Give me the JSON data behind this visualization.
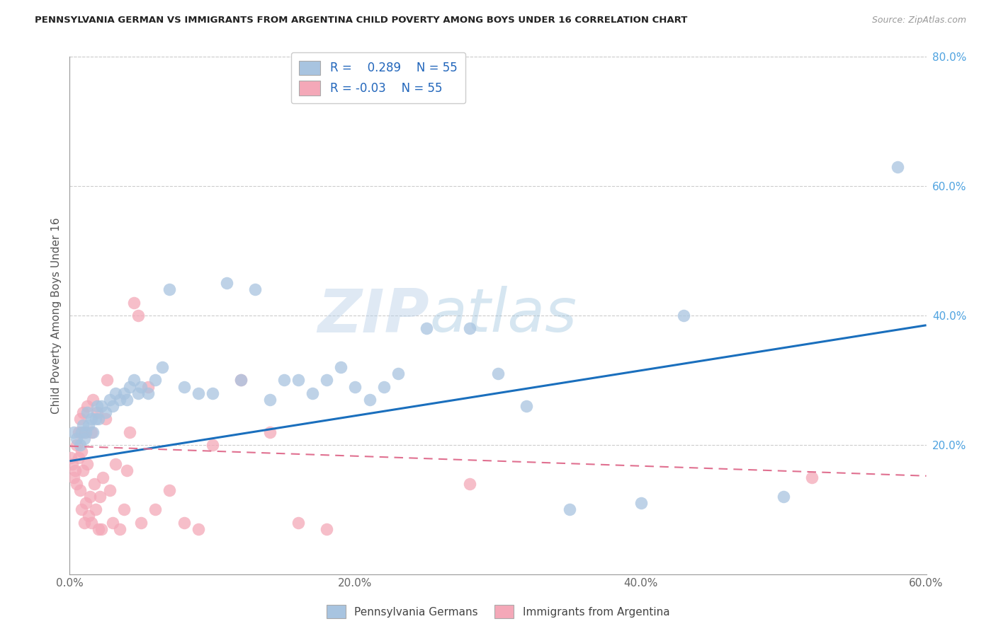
{
  "title": "PENNSYLVANIA GERMAN VS IMMIGRANTS FROM ARGENTINA CHILD POVERTY AMONG BOYS UNDER 16 CORRELATION CHART",
  "source": "Source: ZipAtlas.com",
  "ylabel": "Child Poverty Among Boys Under 16",
  "xlim": [
    0.0,
    0.6
  ],
  "ylim": [
    0.0,
    0.8
  ],
  "xtick_labels": [
    "0.0%",
    "20.0%",
    "40.0%",
    "60.0%"
  ],
  "xtick_vals": [
    0.0,
    0.2,
    0.4,
    0.6
  ],
  "ytick_labels": [
    "20.0%",
    "40.0%",
    "60.0%",
    "80.0%"
  ],
  "ytick_vals": [
    0.2,
    0.4,
    0.6,
    0.8
  ],
  "R_blue": 0.289,
  "R_pink": -0.03,
  "N_blue": 55,
  "N_pink": 55,
  "blue_color": "#a8c4e0",
  "pink_color": "#f4a8b8",
  "line_blue": "#1a6fbd",
  "line_pink": "#e07090",
  "watermark_zip": "ZIP",
  "watermark_atlas": "atlas",
  "legend_label_blue": "Pennsylvania Germans",
  "legend_label_pink": "Immigrants from Argentina",
  "blue_x": [
    0.003,
    0.005,
    0.007,
    0.008,
    0.009,
    0.01,
    0.011,
    0.012,
    0.013,
    0.015,
    0.016,
    0.018,
    0.019,
    0.02,
    0.022,
    0.025,
    0.028,
    0.03,
    0.032,
    0.035,
    0.038,
    0.04,
    0.042,
    0.045,
    0.048,
    0.05,
    0.055,
    0.06,
    0.065,
    0.07,
    0.08,
    0.09,
    0.1,
    0.11,
    0.12,
    0.13,
    0.14,
    0.15,
    0.16,
    0.17,
    0.18,
    0.19,
    0.2,
    0.21,
    0.22,
    0.23,
    0.25,
    0.28,
    0.3,
    0.32,
    0.35,
    0.4,
    0.43,
    0.5,
    0.58
  ],
  "blue_y": [
    0.22,
    0.21,
    0.2,
    0.22,
    0.23,
    0.21,
    0.22,
    0.25,
    0.23,
    0.24,
    0.22,
    0.24,
    0.26,
    0.24,
    0.26,
    0.25,
    0.27,
    0.26,
    0.28,
    0.27,
    0.28,
    0.27,
    0.29,
    0.3,
    0.28,
    0.29,
    0.28,
    0.3,
    0.32,
    0.44,
    0.29,
    0.28,
    0.28,
    0.45,
    0.3,
    0.44,
    0.27,
    0.3,
    0.3,
    0.28,
    0.3,
    0.32,
    0.29,
    0.27,
    0.29,
    0.31,
    0.38,
    0.38,
    0.31,
    0.26,
    0.1,
    0.11,
    0.4,
    0.12,
    0.63
  ],
  "pink_x": [
    0.001,
    0.002,
    0.003,
    0.004,
    0.005,
    0.005,
    0.006,
    0.006,
    0.007,
    0.007,
    0.008,
    0.008,
    0.009,
    0.009,
    0.01,
    0.01,
    0.011,
    0.012,
    0.012,
    0.013,
    0.014,
    0.015,
    0.015,
    0.016,
    0.017,
    0.018,
    0.019,
    0.02,
    0.021,
    0.022,
    0.023,
    0.025,
    0.026,
    0.028,
    0.03,
    0.032,
    0.035,
    0.038,
    0.04,
    0.042,
    0.045,
    0.048,
    0.05,
    0.055,
    0.06,
    0.07,
    0.08,
    0.09,
    0.1,
    0.12,
    0.14,
    0.16,
    0.18,
    0.28,
    0.52
  ],
  "pink_y": [
    0.18,
    0.17,
    0.15,
    0.16,
    0.2,
    0.14,
    0.22,
    0.18,
    0.13,
    0.24,
    0.19,
    0.1,
    0.16,
    0.25,
    0.08,
    0.22,
    0.11,
    0.17,
    0.26,
    0.09,
    0.12,
    0.08,
    0.22,
    0.27,
    0.14,
    0.1,
    0.25,
    0.07,
    0.12,
    0.07,
    0.15,
    0.24,
    0.3,
    0.13,
    0.08,
    0.17,
    0.07,
    0.1,
    0.16,
    0.22,
    0.42,
    0.4,
    0.08,
    0.29,
    0.1,
    0.13,
    0.08,
    0.07,
    0.2,
    0.3,
    0.22,
    0.08,
    0.07,
    0.14,
    0.15
  ],
  "blue_line_x0": 0.0,
  "blue_line_y0": 0.175,
  "blue_line_x1": 0.6,
  "blue_line_y1": 0.385,
  "pink_line_x0": 0.0,
  "pink_line_y0": 0.198,
  "pink_line_x1": 0.6,
  "pink_line_y1": 0.152
}
